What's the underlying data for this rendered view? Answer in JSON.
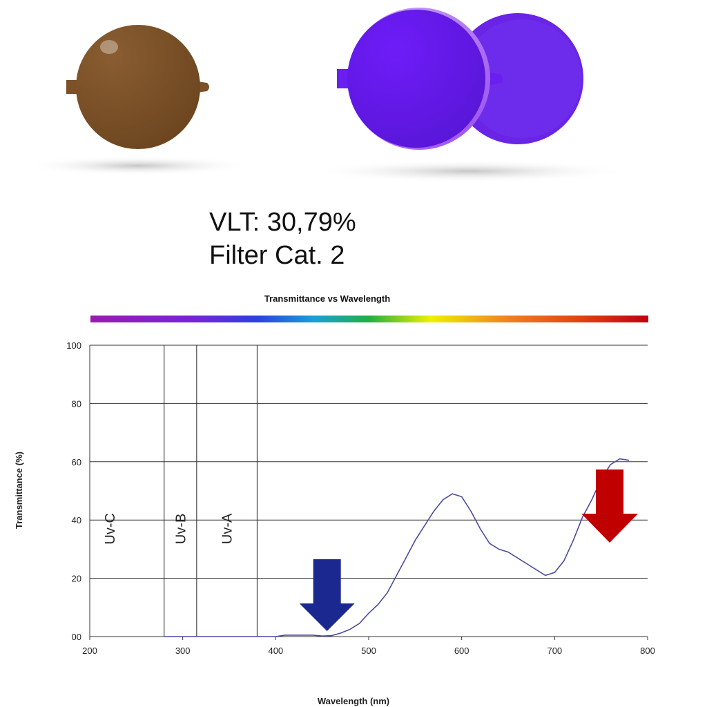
{
  "lens_info": {
    "vlt": "VLT: 30,79%",
    "filter_category": "Filter Cat. 2"
  },
  "colors": {
    "brown_lens": "#7b5128",
    "purple_lens": "#6a1ff0",
    "curve": "#4a4aa0",
    "blue_arrow": "#1a2890",
    "red_arrow": "#c00000"
  },
  "chart_data": {
    "type": "line",
    "title": "Transmittance vs Wavelength",
    "xlabel": "Wavelength (nm)",
    "ylabel": "Transmittance (%)",
    "xlim": [
      200,
      800
    ],
    "ylim": [
      0,
      100
    ],
    "x_ticks": [
      "200",
      "300",
      "400",
      "500",
      "600",
      "700",
      "800"
    ],
    "y_ticks": [
      "00",
      "20",
      "40",
      "60",
      "80",
      "100"
    ],
    "grid": "horizontal",
    "spectrum_bar": true,
    "regions": [
      {
        "label": "Uv-C",
        "from": 200,
        "to": 280
      },
      {
        "label": "Uv-B",
        "from": 280,
        "to": 315
      },
      {
        "label": "Uv-A",
        "from": 315,
        "to": 380
      }
    ],
    "region_dividers": [
      280,
      315,
      380
    ],
    "series": [
      {
        "x": [
          280,
          400,
          410,
          420,
          440,
          450,
          460,
          470,
          480,
          490,
          500,
          510,
          520,
          530,
          540,
          550,
          560,
          570,
          580,
          590,
          600,
          610,
          620,
          630,
          640,
          650,
          660,
          670,
          680,
          690,
          700,
          710,
          720,
          730,
          740,
          750,
          760,
          770,
          780
        ],
        "y": [
          0,
          0,
          0.5,
          0.5,
          0.5,
          0.2,
          0.3,
          1.2,
          2.5,
          4.5,
          8,
          11,
          15,
          21,
          27,
          33,
          38,
          43,
          47,
          49,
          48,
          43,
          37,
          32,
          30,
          29,
          27,
          25,
          23,
          21,
          22,
          26,
          33,
          41,
          47,
          54,
          59,
          61,
          60.5
        ]
      }
    ],
    "arrows": [
      {
        "x": 450,
        "color": "blue",
        "direction": "down"
      },
      {
        "x": 780,
        "color": "red",
        "direction": "down"
      }
    ]
  }
}
